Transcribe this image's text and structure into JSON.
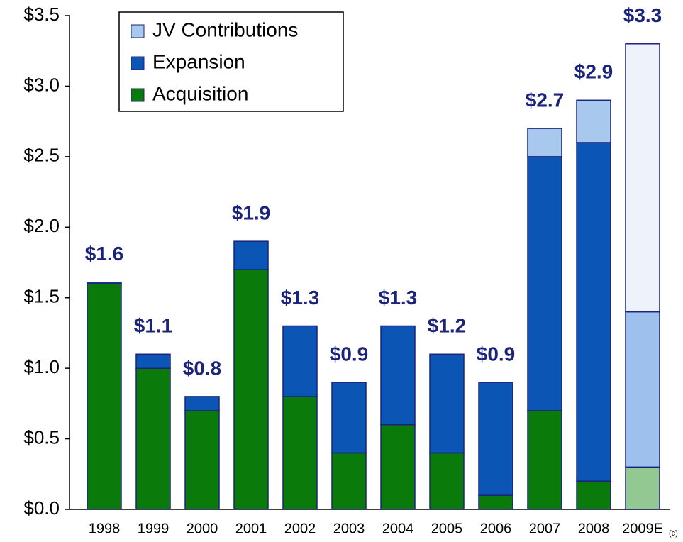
{
  "chart_data": {
    "type": "stacked_bar",
    "categories": [
      "1998",
      "1999",
      "2000",
      "2001",
      "2002",
      "2003",
      "2004",
      "2005",
      "2006",
      "2007",
      "2008",
      "2009E"
    ],
    "series": [
      {
        "name": "Acquisition",
        "color": "#0a7a0a",
        "colors": [
          "#0a7a0a",
          "#0a7a0a",
          "#0a7a0a",
          "#0a7a0a",
          "#0a7a0a",
          "#0a7a0a",
          "#0a7a0a",
          "#0a7a0a",
          "#0a7a0a",
          "#0a7a0a",
          "#0a7a0a",
          "#93c893"
        ],
        "values": [
          1.6,
          1.0,
          0.7,
          1.7,
          0.8,
          0.4,
          0.6,
          0.4,
          0.1,
          0.7,
          0.2,
          0.3
        ]
      },
      {
        "name": "Expansion",
        "color": "#0b55b5",
        "colors": [
          "#0b55b5",
          "#0b55b5",
          "#0b55b5",
          "#0b55b5",
          "#0b55b5",
          "#0b55b5",
          "#0b55b5",
          "#0b55b5",
          "#0b55b5",
          "#0b55b5",
          "#0b55b5",
          "#9dc0ec"
        ],
        "values": [
          0.01,
          0.1,
          0.1,
          0.2,
          0.5,
          0.5,
          0.7,
          0.7,
          0.8,
          1.8,
          2.4,
          1.1
        ]
      },
      {
        "name": "JV Contributions",
        "color": "#a9c8ee",
        "colors": [
          "#a9c8ee",
          "#a9c8ee",
          "#a9c8ee",
          "#a9c8ee",
          "#a9c8ee",
          "#a9c8ee",
          "#a9c8ee",
          "#a9c8ee",
          "#a9c8ee",
          "#a9c8ee",
          "#a9c8ee",
          "#eef2fb"
        ],
        "values": [
          0,
          0,
          0,
          0,
          0,
          0,
          0,
          0,
          0,
          0.2,
          0.3,
          1.9
        ]
      }
    ],
    "total_labels": [
      "$1.6",
      "$1.1",
      "$0.8",
      "$1.9",
      "$1.3",
      "$0.9",
      "$1.3",
      "$1.2",
      "$0.9",
      "$2.7",
      "$2.9",
      "$3.3"
    ],
    "annotation": "(c)",
    "ylim": [
      0,
      3.5
    ],
    "yticks": [
      {
        "value": 0,
        "label": "$0.0"
      },
      {
        "value": 0.5,
        "label": "$0.5"
      },
      {
        "value": 1,
        "label": "$1.0"
      },
      {
        "value": 1.5,
        "label": "$1.5"
      },
      {
        "value": 2,
        "label": "$2.0"
      },
      {
        "value": 2.5,
        "label": "$2.5"
      },
      {
        "value": 3,
        "label": "$3.0"
      },
      {
        "value": 3.5,
        "label": "$3.5"
      }
    ],
    "grid": false,
    "legend": "upper left",
    "outline_color": "#1c237a",
    "label_color": "#1c237a"
  }
}
